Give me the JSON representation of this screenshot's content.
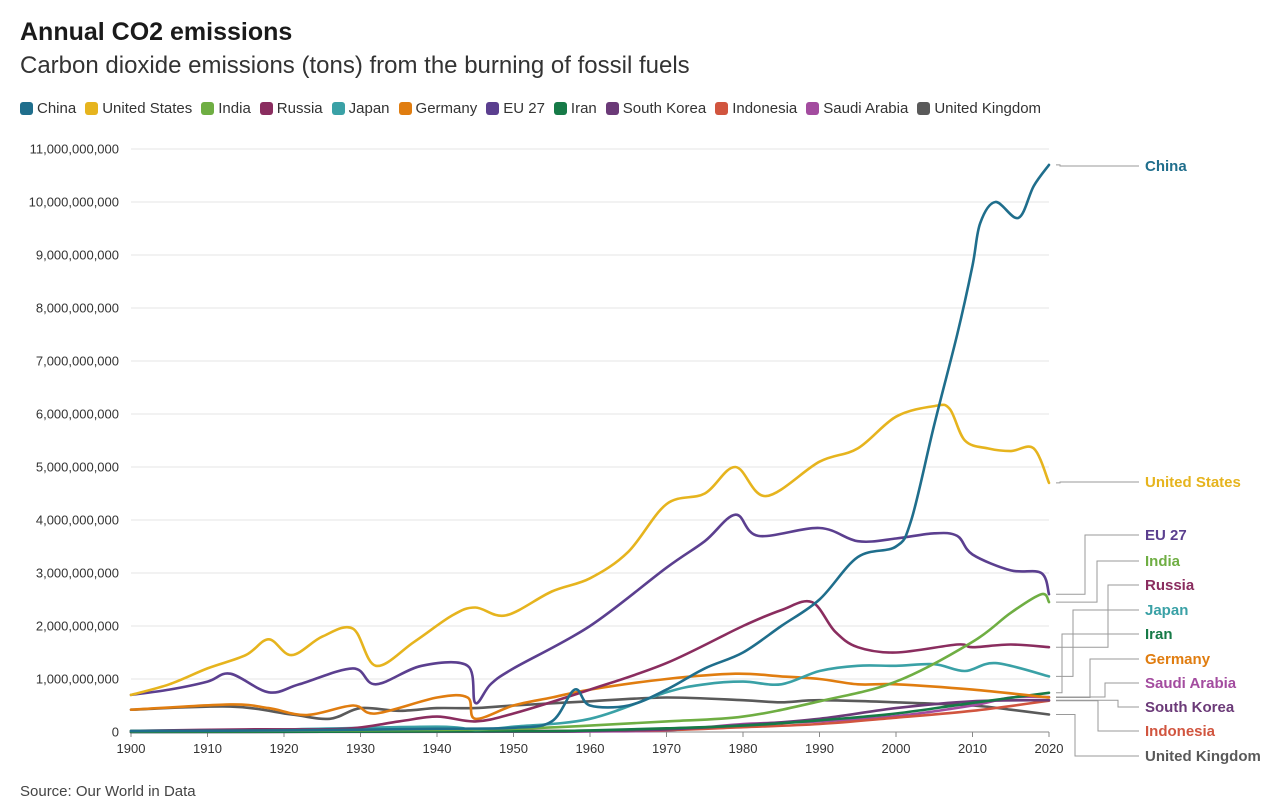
{
  "chart_data": {
    "type": "line",
    "title": "Annual CO2 emissions",
    "subtitle": "Carbon dioxide emissions (tons) from the burning of fossil fuels",
    "source": "Source: Our World in Data",
    "xlim": [
      1900,
      2020
    ],
    "ylim": [
      0,
      11000000000
    ],
    "x_ticks": [
      1900,
      1910,
      1920,
      1930,
      1940,
      1950,
      1960,
      1970,
      1980,
      1990,
      2000,
      2010,
      2020
    ],
    "y_ticks": [
      0,
      1000000000,
      2000000000,
      3000000000,
      4000000000,
      5000000000,
      6000000000,
      7000000000,
      8000000000,
      9000000000,
      10000000000,
      11000000000
    ],
    "y_tick_labels": [
      "0",
      "1,000,000,000",
      "2,000,000,000",
      "3,000,000,000",
      "4,000,000,000",
      "5,000,000,000",
      "6,000,000,000",
      "7,000,000,000",
      "8,000,000,000",
      "9,000,000,000",
      "10,000,000,000",
      "11,000,000,000"
    ],
    "grid": true,
    "legend_position": "top",
    "series": [
      {
        "name": "China",
        "color": "#1f6e8c",
        "points": [
          [
            1900,
            20000000
          ],
          [
            1920,
            30000000
          ],
          [
            1940,
            60000000
          ],
          [
            1950,
            80000000
          ],
          [
            1955,
            200000000
          ],
          [
            1958,
            800000000
          ],
          [
            1960,
            500000000
          ],
          [
            1965,
            500000000
          ],
          [
            1970,
            800000000
          ],
          [
            1975,
            1200000000
          ],
          [
            1980,
            1500000000
          ],
          [
            1985,
            2000000000
          ],
          [
            1990,
            2500000000
          ],
          [
            1995,
            3300000000
          ],
          [
            2000,
            3500000000
          ],
          [
            2002,
            4000000000
          ],
          [
            2005,
            5800000000
          ],
          [
            2008,
            7500000000
          ],
          [
            2010,
            8800000000
          ],
          [
            2011,
            9600000000
          ],
          [
            2013,
            10000000000
          ],
          [
            2016,
            9700000000
          ],
          [
            2018,
            10300000000
          ],
          [
            2020,
            10700000000
          ]
        ]
      },
      {
        "name": "United States",
        "color": "#e6b41e",
        "points": [
          [
            1900,
            700000000
          ],
          [
            1905,
            900000000
          ],
          [
            1910,
            1200000000
          ],
          [
            1915,
            1450000000
          ],
          [
            1918,
            1750000000
          ],
          [
            1921,
            1450000000
          ],
          [
            1925,
            1800000000
          ],
          [
            1929,
            1950000000
          ],
          [
            1932,
            1250000000
          ],
          [
            1937,
            1700000000
          ],
          [
            1942,
            2200000000
          ],
          [
            1945,
            2350000000
          ],
          [
            1949,
            2200000000
          ],
          [
            1955,
            2650000000
          ],
          [
            1960,
            2900000000
          ],
          [
            1965,
            3400000000
          ],
          [
            1970,
            4300000000
          ],
          [
            1975,
            4500000000
          ],
          [
            1979,
            5000000000
          ],
          [
            1983,
            4450000000
          ],
          [
            1990,
            5100000000
          ],
          [
            1995,
            5350000000
          ],
          [
            2000,
            5950000000
          ],
          [
            2005,
            6150000000
          ],
          [
            2007,
            6100000000
          ],
          [
            2009,
            5500000000
          ],
          [
            2012,
            5350000000
          ],
          [
            2015,
            5300000000
          ],
          [
            2018,
            5350000000
          ],
          [
            2020,
            4700000000
          ]
        ]
      },
      {
        "name": "India",
        "color": "#6fae43",
        "points": [
          [
            1900,
            20000000
          ],
          [
            1920,
            25000000
          ],
          [
            1940,
            40000000
          ],
          [
            1950,
            60000000
          ],
          [
            1960,
            120000000
          ],
          [
            1970,
            200000000
          ],
          [
            1980,
            290000000
          ],
          [
            1990,
            580000000
          ],
          [
            2000,
            950000000
          ],
          [
            2010,
            1700000000
          ],
          [
            2015,
            2250000000
          ],
          [
            2019,
            2600000000
          ],
          [
            2020,
            2450000000
          ]
        ]
      },
      {
        "name": "Russia",
        "color": "#8a2d5f",
        "points": [
          [
            1900,
            20000000
          ],
          [
            1915,
            50000000
          ],
          [
            1928,
            60000000
          ],
          [
            1935,
            200000000
          ],
          [
            1940,
            290000000
          ],
          [
            1945,
            200000000
          ],
          [
            1950,
            350000000
          ],
          [
            1960,
            800000000
          ],
          [
            1970,
            1300000000
          ],
          [
            1980,
            2000000000
          ],
          [
            1985,
            2300000000
          ],
          [
            1989,
            2450000000
          ],
          [
            1992,
            1900000000
          ],
          [
            1995,
            1600000000
          ],
          [
            2000,
            1500000000
          ],
          [
            2008,
            1650000000
          ],
          [
            2010,
            1600000000
          ],
          [
            2015,
            1650000000
          ],
          [
            2020,
            1600000000
          ]
        ]
      },
      {
        "name": "Japan",
        "color": "#3aa1a6",
        "points": [
          [
            1900,
            20000000
          ],
          [
            1920,
            50000000
          ],
          [
            1940,
            100000000
          ],
          [
            1945,
            40000000
          ],
          [
            1950,
            100000000
          ],
          [
            1960,
            250000000
          ],
          [
            1970,
            750000000
          ],
          [
            1975,
            900000000
          ],
          [
            1980,
            950000000
          ],
          [
            1985,
            900000000
          ],
          [
            1990,
            1150000000
          ],
          [
            1995,
            1250000000
          ],
          [
            2000,
            1250000000
          ],
          [
            2005,
            1280000000
          ],
          [
            2009,
            1150000000
          ],
          [
            2013,
            1300000000
          ],
          [
            2020,
            1050000000
          ]
        ]
      },
      {
        "name": "Germany",
        "color": "#e07d10",
        "points": [
          [
            1900,
            420000000
          ],
          [
            1913,
            520000000
          ],
          [
            1918,
            450000000
          ],
          [
            1923,
            320000000
          ],
          [
            1929,
            500000000
          ],
          [
            1932,
            350000000
          ],
          [
            1940,
            650000000
          ],
          [
            1944,
            650000000
          ],
          [
            1945,
            250000000
          ],
          [
            1950,
            500000000
          ],
          [
            1955,
            650000000
          ],
          [
            1960,
            800000000
          ],
          [
            1970,
            1000000000
          ],
          [
            1979,
            1100000000
          ],
          [
            1985,
            1050000000
          ],
          [
            1990,
            1000000000
          ],
          [
            1995,
            900000000
          ],
          [
            2000,
            900000000
          ],
          [
            2010,
            800000000
          ],
          [
            2020,
            650000000
          ]
        ]
      },
      {
        "name": "EU 27",
        "color": "#5b3f8f",
        "points": [
          [
            1900,
            700000000
          ],
          [
            1905,
            800000000
          ],
          [
            1910,
            950000000
          ],
          [
            1913,
            1100000000
          ],
          [
            1918,
            750000000
          ],
          [
            1922,
            900000000
          ],
          [
            1929,
            1200000000
          ],
          [
            1932,
            900000000
          ],
          [
            1938,
            1250000000
          ],
          [
            1944,
            1250000000
          ],
          [
            1945,
            550000000
          ],
          [
            1947,
            900000000
          ],
          [
            1950,
            1200000000
          ],
          [
            1960,
            2000000000
          ],
          [
            1970,
            3100000000
          ],
          [
            1975,
            3600000000
          ],
          [
            1979,
            4100000000
          ],
          [
            1982,
            3700000000
          ],
          [
            1990,
            3850000000
          ],
          [
            1995,
            3600000000
          ],
          [
            2000,
            3650000000
          ],
          [
            2005,
            3750000000
          ],
          [
            2008,
            3700000000
          ],
          [
            2010,
            3350000000
          ],
          [
            2015,
            3050000000
          ],
          [
            2019,
            3000000000
          ],
          [
            2020,
            2600000000
          ]
        ]
      },
      {
        "name": "Iran",
        "color": "#167a47",
        "points": [
          [
            1900,
            0
          ],
          [
            1950,
            15000000
          ],
          [
            1960,
            30000000
          ],
          [
            1970,
            70000000
          ],
          [
            1980,
            120000000
          ],
          [
            1990,
            220000000
          ],
          [
            2000,
            350000000
          ],
          [
            2010,
            550000000
          ],
          [
            2020,
            740000000
          ]
        ]
      },
      {
        "name": "South Korea",
        "color": "#6b3a78",
        "points": [
          [
            1900,
            0
          ],
          [
            1950,
            10000000
          ],
          [
            1960,
            20000000
          ],
          [
            1970,
            50000000
          ],
          [
            1980,
            130000000
          ],
          [
            1990,
            250000000
          ],
          [
            2000,
            450000000
          ],
          [
            2010,
            580000000
          ],
          [
            2020,
            600000000
          ]
        ]
      },
      {
        "name": "Indonesia",
        "color": "#d1553f",
        "points": [
          [
            1900,
            5000000
          ],
          [
            1950,
            20000000
          ],
          [
            1960,
            25000000
          ],
          [
            1970,
            35000000
          ],
          [
            1980,
            90000000
          ],
          [
            1990,
            150000000
          ],
          [
            2000,
            270000000
          ],
          [
            2010,
            400000000
          ],
          [
            2020,
            590000000
          ]
        ]
      },
      {
        "name": "Saudi Arabia",
        "color": "#a34c9f",
        "points": [
          [
            1900,
            0
          ],
          [
            1950,
            5000000
          ],
          [
            1960,
            10000000
          ],
          [
            1970,
            30000000
          ],
          [
            1980,
            150000000
          ],
          [
            1990,
            200000000
          ],
          [
            2000,
            300000000
          ],
          [
            2010,
            500000000
          ],
          [
            2015,
            650000000
          ],
          [
            2020,
            660000000
          ]
        ]
      },
      {
        "name": "United Kingdom",
        "color": "#5a5a5a",
        "points": [
          [
            1900,
            420000000
          ],
          [
            1913,
            480000000
          ],
          [
            1921,
            330000000
          ],
          [
            1926,
            250000000
          ],
          [
            1930,
            450000000
          ],
          [
            1935,
            400000000
          ],
          [
            1940,
            450000000
          ],
          [
            1945,
            450000000
          ],
          [
            1950,
            500000000
          ],
          [
            1960,
            580000000
          ],
          [
            1970,
            650000000
          ],
          [
            1980,
            600000000
          ],
          [
            1985,
            560000000
          ],
          [
            1990,
            600000000
          ],
          [
            2000,
            560000000
          ],
          [
            2010,
            500000000
          ],
          [
            2015,
            420000000
          ],
          [
            2020,
            330000000
          ]
        ]
      }
    ]
  }
}
